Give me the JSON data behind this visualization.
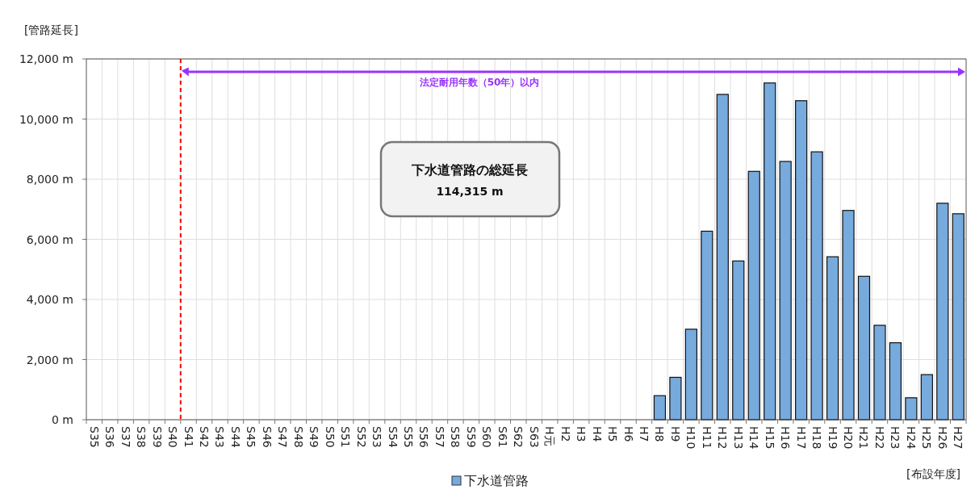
{
  "chart_data": {
    "type": "bar",
    "xlabel": "[布設年度]",
    "ylabel": "[管路延長]",
    "categories": [
      "S35",
      "S36",
      "S37",
      "S38",
      "S39",
      "S40",
      "S41",
      "S42",
      "S43",
      "S44",
      "S45",
      "S46",
      "S47",
      "S48",
      "S49",
      "S50",
      "S51",
      "S52",
      "S53",
      "S54",
      "S55",
      "S56",
      "S57",
      "S58",
      "S59",
      "S60",
      "S61",
      "S62",
      "S63",
      "H元",
      "H2",
      "H3",
      "H4",
      "H5",
      "H6",
      "H7",
      "H8",
      "H9",
      "H10",
      "H11",
      "H12",
      "H13",
      "H14",
      "H15",
      "H16",
      "H17",
      "H18",
      "H19",
      "H20",
      "H21",
      "H22",
      "H23",
      "H24",
      "H25",
      "H26",
      "H27"
    ],
    "series": [
      {
        "name": "下水道管路",
        "color": "#77aadd",
        "values": [
          null,
          null,
          null,
          null,
          null,
          null,
          null,
          null,
          null,
          null,
          null,
          null,
          null,
          null,
          null,
          null,
          null,
          null,
          null,
          null,
          null,
          null,
          null,
          null,
          null,
          null,
          null,
          null,
          null,
          null,
          null,
          null,
          null,
          null,
          null,
          null,
          800,
          1410,
          3010,
          6270,
          10820,
          5280,
          8260,
          11200,
          8590,
          10610,
          8910,
          5420,
          6960,
          4770,
          3140,
          2560,
          730,
          1500,
          7200,
          6850
        ]
      }
    ],
    "ylim": [
      0,
      12000
    ],
    "yticks": [
      {
        "value": 0,
        "label": "0 m"
      },
      {
        "value": 2000,
        "label": "2,000 m"
      },
      {
        "value": 4000,
        "label": "4,000 m"
      },
      {
        "value": 6000,
        "label": "6,000 m"
      },
      {
        "value": 8000,
        "label": "8,000 m"
      },
      {
        "value": 10000,
        "label": "10,000 m"
      },
      {
        "value": 12000,
        "label": "12,000 m"
      }
    ],
    "grid": true,
    "legend": "bottom",
    "ref_lines": [
      {
        "axis": "x",
        "value": "S41",
        "color": "#ff0000",
        "line_style": "dashed"
      }
    ],
    "annotations": [
      "法定耐用年数（50年）以内",
      "下水道管路の総延長\n114,315 m"
    ]
  }
}
